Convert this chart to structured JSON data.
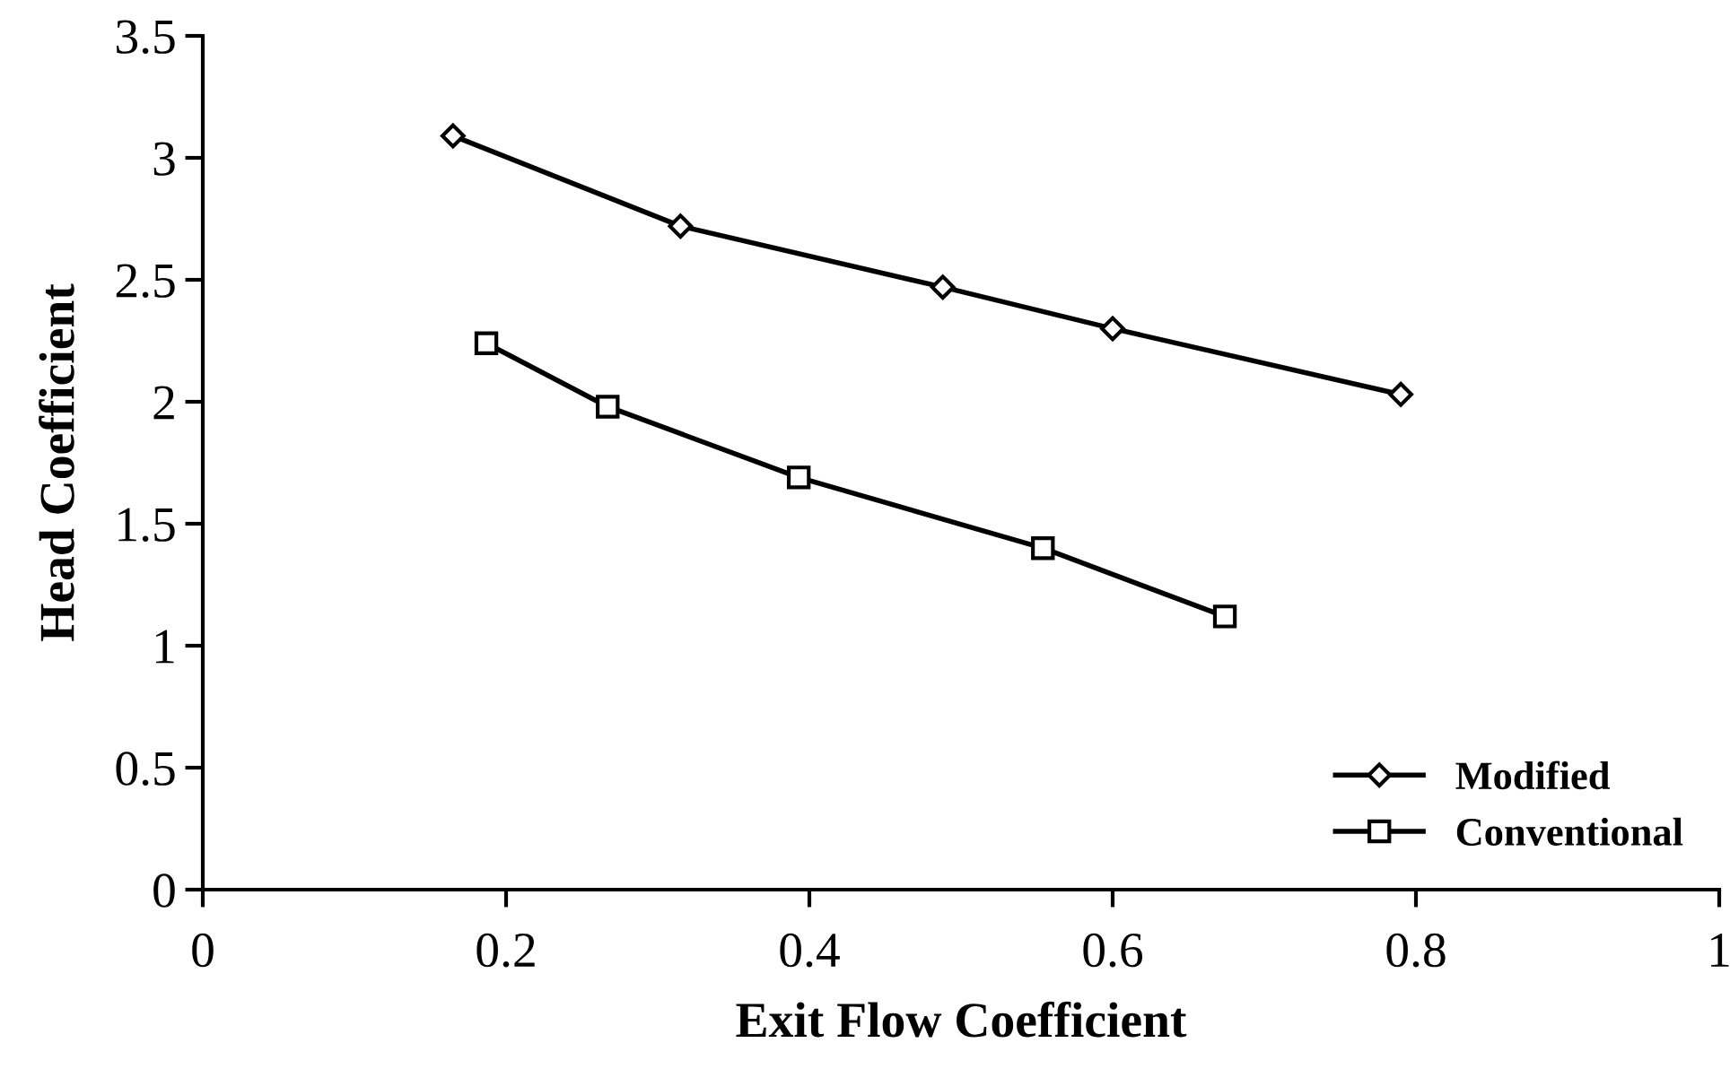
{
  "chart_data": {
    "type": "line",
    "xlabel": "Exit Flow Coefficient",
    "ylabel": "Head Coefficient",
    "series": [
      {
        "name": "Modified",
        "color": "#000000",
        "marker": "diamond",
        "x": [
          0.165,
          0.315,
          0.488,
          0.6,
          0.79
        ],
        "values": [
          3.09,
          2.72,
          2.47,
          2.3,
          2.03
        ]
      },
      {
        "name": "Conventional",
        "color": "#000000",
        "marker": "square",
        "x": [
          0.187,
          0.267,
          0.393,
          0.554,
          0.674
        ],
        "values": [
          2.24,
          1.98,
          1.69,
          1.4,
          1.12
        ]
      }
    ],
    "xlim": [
      0,
      1
    ],
    "xticks": [
      0,
      0.2,
      0.4,
      0.6,
      0.8,
      1
    ],
    "ylim": [
      0,
      3.5
    ],
    "yticks": [
      0,
      0.5,
      1,
      1.5,
      2,
      2.5,
      3,
      3.5
    ],
    "grid": false,
    "legend": "bottom right",
    "line_style": "solid"
  }
}
